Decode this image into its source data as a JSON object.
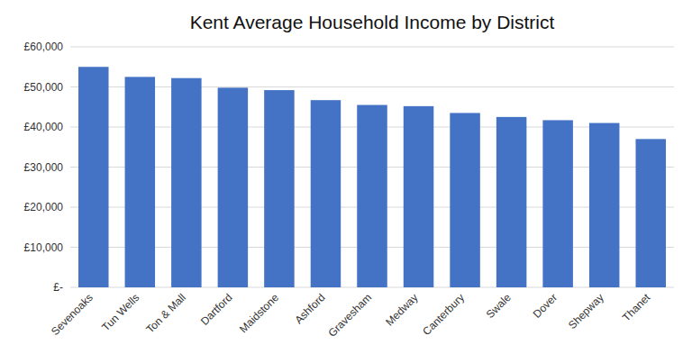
{
  "chart_data": {
    "type": "bar",
    "title": "Kent Average Household Income by District",
    "categories": [
      "Sevenoaks",
      "Tun Wells",
      "Ton & Mall",
      "Dartford",
      "Maidstone",
      "Ashford",
      "Gravesham",
      "Medway",
      "Canterbury",
      "Swale",
      "Dover",
      "Shepway",
      "Thanet"
    ],
    "values": [
      55000,
      52500,
      52200,
      49800,
      49200,
      46700,
      45500,
      45200,
      43500,
      42500,
      41700,
      41000,
      37000
    ],
    "color": "#4472C4",
    "ylim": [
      0,
      60000
    ],
    "yticks": [
      {
        "value": 0,
        "label": "£-"
      },
      {
        "value": 10000,
        "label": "£10,000"
      },
      {
        "value": 20000,
        "label": "£20,000"
      },
      {
        "value": 30000,
        "label": "£30,000"
      },
      {
        "value": 40000,
        "label": "£40,000"
      },
      {
        "value": 50000,
        "label": "£50,000"
      },
      {
        "value": 60000,
        "label": "£60,000"
      }
    ],
    "grid": true
  }
}
